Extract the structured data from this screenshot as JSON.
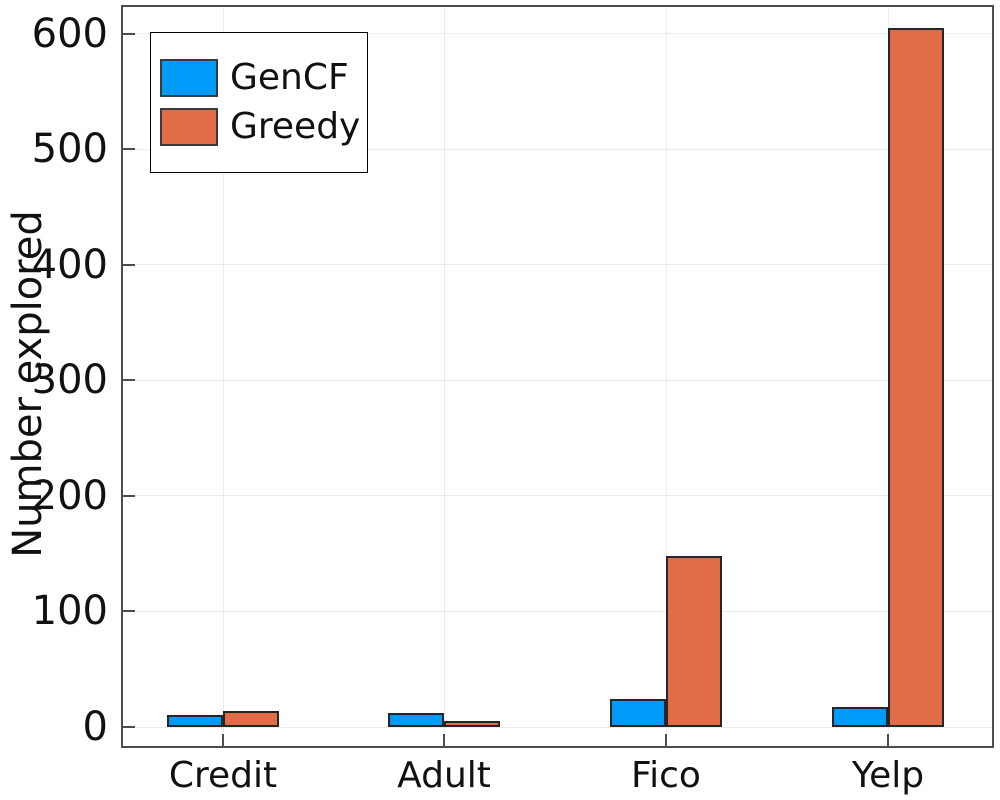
{
  "chart_data": {
    "type": "bar",
    "title": "",
    "xlabel": "",
    "ylabel": "Number explored",
    "categories": [
      "Credit",
      "Adult",
      "Fico",
      "Yelp"
    ],
    "series": [
      {
        "name": "GenCF",
        "color": "#009AF9",
        "values": [
          10,
          12,
          24,
          17
        ]
      },
      {
        "name": "Greedy",
        "color": "#E06D47",
        "values": [
          14,
          5,
          148,
          605
        ]
      }
    ],
    "yticks": [
      0,
      100,
      200,
      300,
      400,
      500,
      600
    ],
    "ytick_labels": [
      "0",
      "100",
      "200",
      "300",
      "400",
      "500",
      "600"
    ],
    "ylim": [
      0,
      623
    ],
    "grid": true,
    "legend_position": "top-left",
    "frame_color": "#4d4d4d",
    "bar_border_color": "#262626"
  }
}
